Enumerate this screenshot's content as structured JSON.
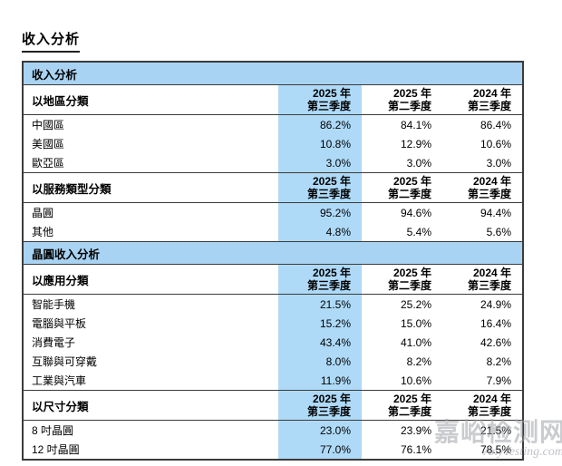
{
  "page": {
    "title": "收入分析"
  },
  "colors": {
    "section_banner_bg": "#a9d3f2",
    "highlight_column_bg": "#aedaf8",
    "border": "#3b3b3b"
  },
  "quarter_columns": [
    {
      "line1": "2025 年",
      "line2": "第三季度",
      "highlighted": true
    },
    {
      "line1": "2025 年",
      "line2": "第二季度",
      "highlighted": false
    },
    {
      "line1": "2024 年",
      "line2": "第三季度",
      "highlighted": false
    }
  ],
  "table": {
    "sections": [
      {
        "type": "banner",
        "label": "收入分析"
      },
      {
        "type": "group",
        "header": "以地區分類",
        "rows": [
          {
            "label": "中國區",
            "values": [
              "86.2%",
              "84.1%",
              "86.4%"
            ]
          },
          {
            "label": "美國區",
            "values": [
              "10.8%",
              "12.9%",
              "10.6%"
            ]
          },
          {
            "label": "歐亞區",
            "values": [
              "3.0%",
              "3.0%",
              "3.0%"
            ]
          }
        ]
      },
      {
        "type": "group",
        "header": "以服務類型分類",
        "rows": [
          {
            "label": "晶圓",
            "values": [
              "95.2%",
              "94.6%",
              "94.4%"
            ]
          },
          {
            "label": "其他",
            "values": [
              "4.8%",
              "5.4%",
              "5.6%"
            ]
          }
        ]
      },
      {
        "type": "banner",
        "label": "晶圓收入分析"
      },
      {
        "type": "group",
        "header": "以應用分類",
        "rows": [
          {
            "label": "智能手機",
            "values": [
              "21.5%",
              "25.2%",
              "24.9%"
            ]
          },
          {
            "label": "電腦與平板",
            "values": [
              "15.2%",
              "15.0%",
              "16.4%"
            ]
          },
          {
            "label": "消費電子",
            "values": [
              "43.4%",
              "41.0%",
              "42.6%"
            ]
          },
          {
            "label": "互聯與可穿戴",
            "values": [
              "8.0%",
              "8.2%",
              "8.2%"
            ]
          },
          {
            "label": "工業與汽車",
            "values": [
              "11.9%",
              "10.6%",
              "7.9%"
            ]
          }
        ]
      },
      {
        "type": "group",
        "header": "以尺寸分類",
        "rows": [
          {
            "label": "8 吋晶圓",
            "values": [
              "23.0%",
              "23.9%",
              "21.5%"
            ]
          },
          {
            "label": "12 吋晶圓",
            "values": [
              "77.0%",
              "76.1%",
              "78.5%"
            ]
          }
        ]
      }
    ]
  },
  "watermark": {
    "line1": "嘉峪检测网",
    "line2": "AnyTesting.com"
  }
}
